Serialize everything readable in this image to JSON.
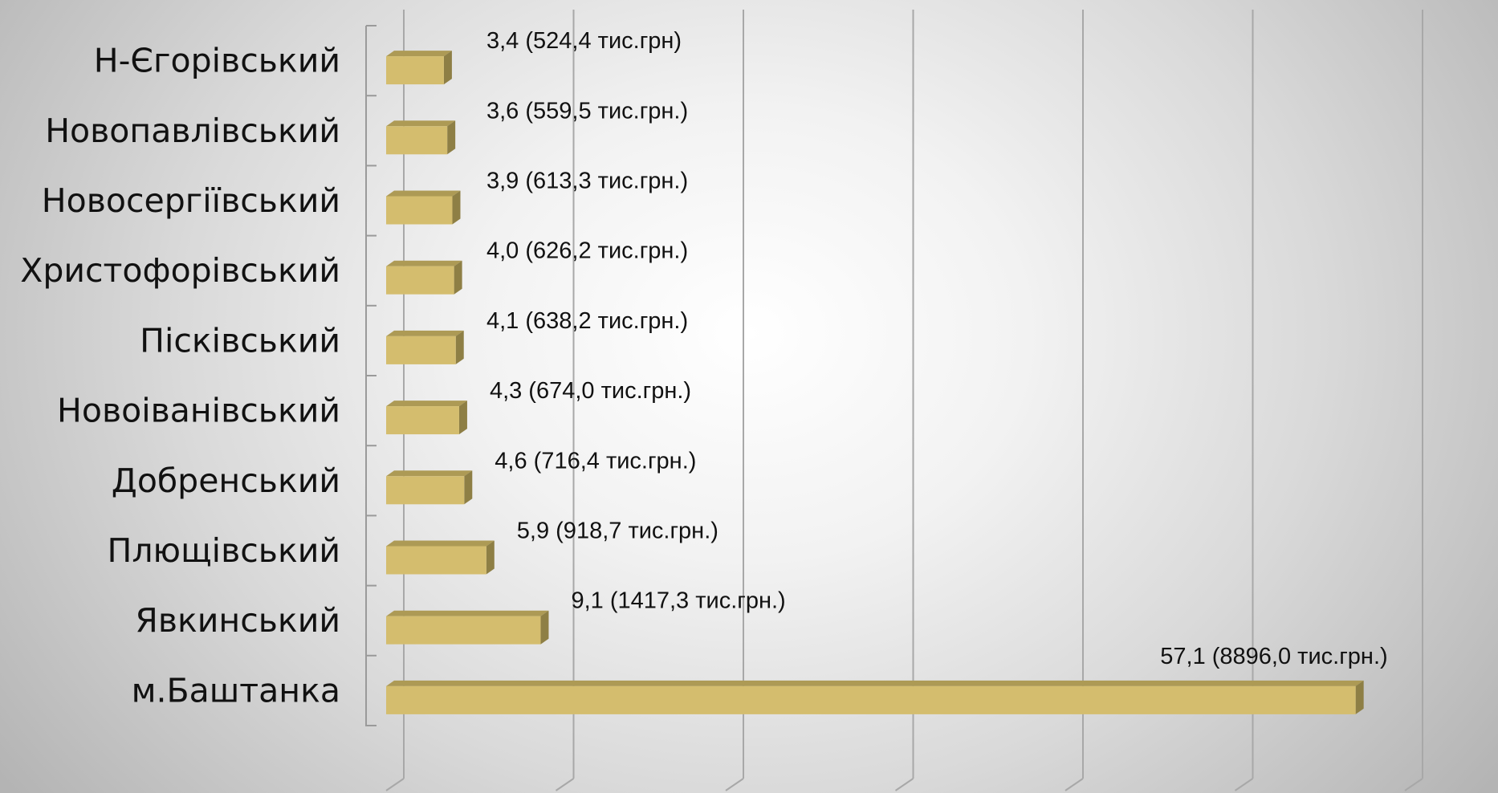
{
  "chart_data": {
    "type": "bar",
    "orientation": "horizontal",
    "style": "3d",
    "bar_color": "#d4bd6e",
    "bar_top_color": "#ad9a55",
    "bar_side_color": "#8e7f45",
    "categories": [
      "Н-Єгорівський",
      "Новопавлівський",
      "Новосергіївський",
      "Христофорівський",
      "Пісківський",
      "Новоіванівський",
      "Добренський",
      "Плющівський",
      "Явкинський",
      "м.Баштанка"
    ],
    "values": [
      3.4,
      3.6,
      3.9,
      4.0,
      4.1,
      4.3,
      4.6,
      5.9,
      9.1,
      57.1
    ],
    "data_labels": [
      "3,4 (524,4 тис.грн)",
      "3,6 (559,5 тис.грн.)",
      "3,9 (613,3 тис.грн.)",
      "4,0 (626,2 тис.грн.)",
      "4,1 (638,2 тис.грн.)",
      "4,3 (674,0 тис.грн.)",
      "4,6 (716,4 тис.грн.)",
      "5,9 (918,7 тис.грн.)",
      "9,1 (1417,3 тис.грн.)",
      "57,1 (8896,0 тис.грн.)"
    ],
    "xlim": [
      0,
      60
    ],
    "grid": true,
    "legend": "none"
  }
}
